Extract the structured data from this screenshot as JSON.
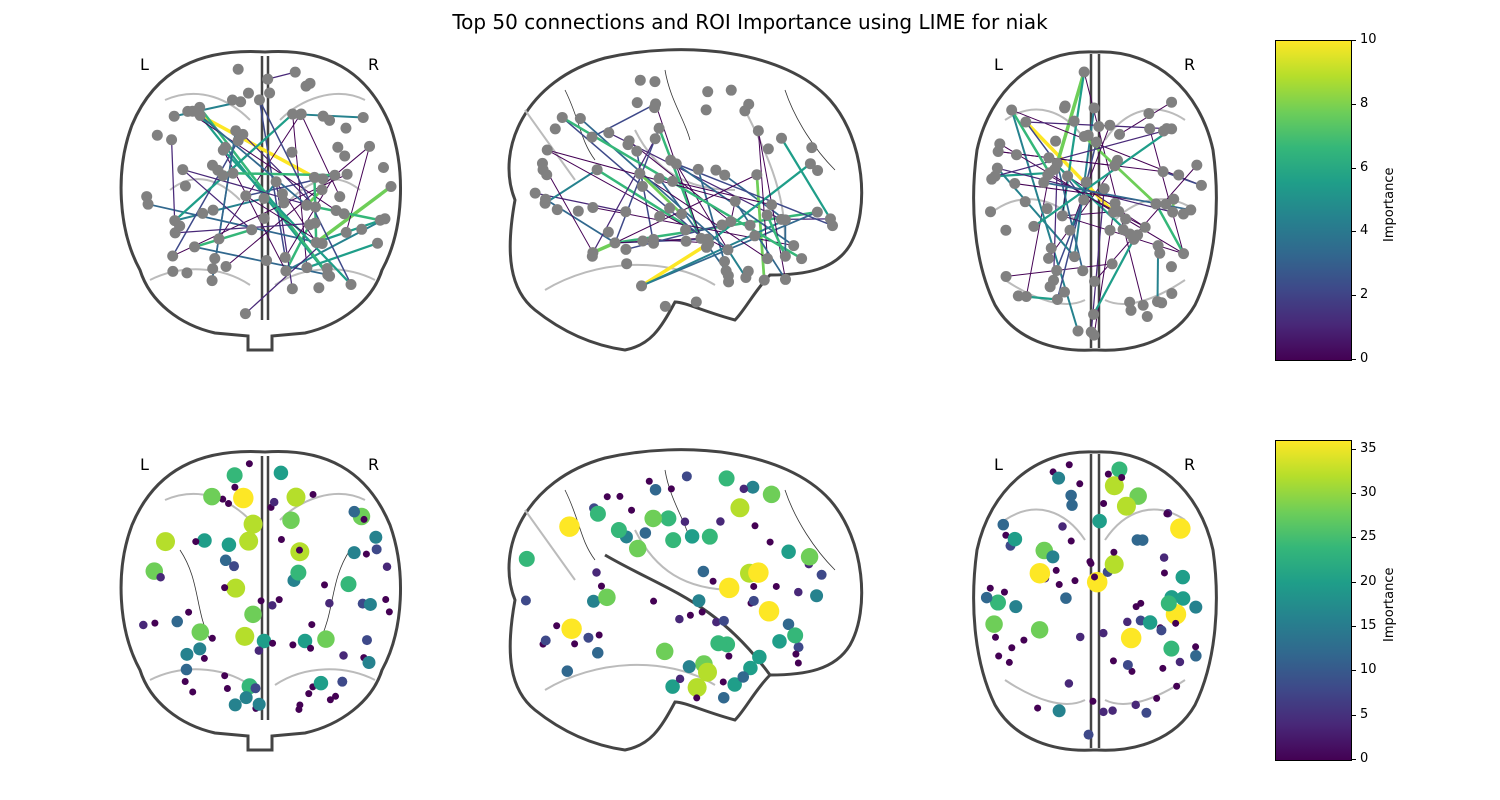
{
  "title": "Top 50 connections and ROI Importance using LIME for niak",
  "hemisphere_labels": {
    "left": "L",
    "right": "R"
  },
  "connections_colorbar": {
    "label": "Importance",
    "ticks": [
      "0",
      "2",
      "4",
      "6",
      "8",
      "10"
    ],
    "range": [
      0,
      10
    ],
    "colormap": "viridis"
  },
  "roi_colorbar": {
    "label": "Importance",
    "ticks": [
      "0",
      "5",
      "10",
      "15",
      "20",
      "25",
      "30",
      "35"
    ],
    "range": [
      0,
      36
    ],
    "colormap": "viridis"
  },
  "views": [
    "coronal",
    "sagittal",
    "axial"
  ],
  "colors": {
    "node": "#808080",
    "outline": "#444444",
    "inner_contour": "#bbbbbb",
    "viridis": [
      "#440154",
      "#482878",
      "#3e4989",
      "#31688e",
      "#26828e",
      "#1f9e89",
      "#35b779",
      "#6ece58",
      "#b5de2b",
      "#fde725"
    ]
  }
}
